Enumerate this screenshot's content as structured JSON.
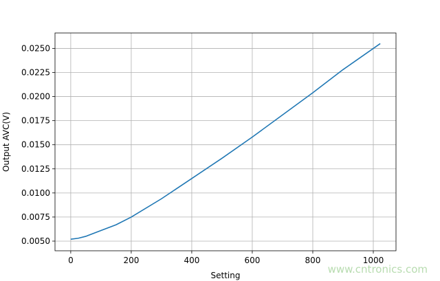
{
  "chart_data": {
    "type": "line",
    "title": "",
    "xlabel": "Setting",
    "ylabel": "Output AVC(V)",
    "xlim": [
      -52,
      1075
    ],
    "ylim": [
      0.004,
      0.0266
    ],
    "xticks": [
      0,
      200,
      400,
      600,
      800,
      1000
    ],
    "xtick_labels": [
      "0",
      "200",
      "400",
      "600",
      "800",
      "1000"
    ],
    "yticks": [
      0.005,
      0.0075,
      0.01,
      0.0125,
      0.015,
      0.0175,
      0.02,
      0.0225,
      0.025
    ],
    "ytick_labels": [
      "0.0050",
      "0.0075",
      "0.0100",
      "0.0125",
      "0.0150",
      "0.0175",
      "0.0200",
      "0.0225",
      "0.0250"
    ],
    "grid": true,
    "line_color": "#1f77b4",
    "series": [
      {
        "x": [
          0,
          25,
          50,
          100,
          150,
          200,
          300,
          400,
          500,
          600,
          700,
          800,
          900,
          1023
        ],
        "values": [
          0.0052,
          0.0053,
          0.0055,
          0.0061,
          0.0067,
          0.0075,
          0.0094,
          0.0115,
          0.0136,
          0.0158,
          0.0181,
          0.0204,
          0.0228,
          0.0255
        ]
      }
    ]
  },
  "watermark": "www.cntronics.com"
}
